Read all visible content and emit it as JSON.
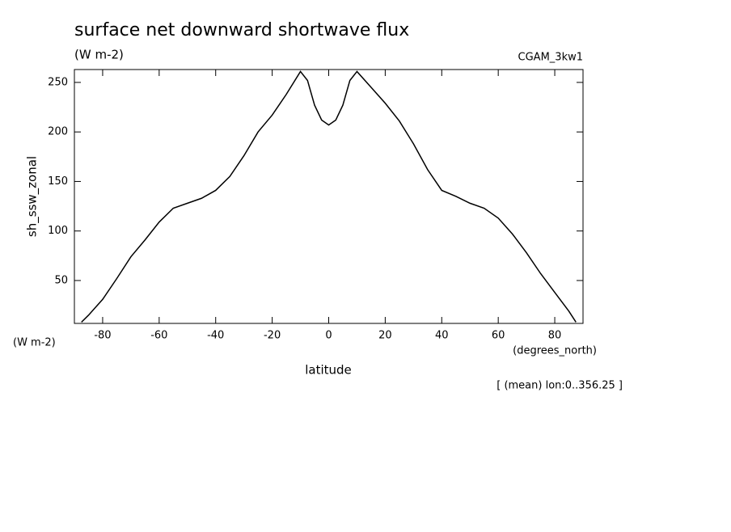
{
  "chart_data": {
    "type": "line",
    "title": "surface net downward shortwave flux",
    "subtitle": "(W m-2)",
    "dataset": "CGAM_3kw1",
    "ylabel": "sh_ssw_zonal",
    "yunits": "(W m-2)",
    "xunits": "(degrees_north)",
    "xlabel": "latitude",
    "note": "[ (mean) lon:0..356.25 ]",
    "x": [
      -87.5,
      -85,
      -80,
      -75,
      -70,
      -65,
      -60,
      -55,
      -50,
      -45,
      -40,
      -35,
      -30,
      -25,
      -20,
      -15,
      -10,
      -7.5,
      -5,
      -2.5,
      0,
      2.5,
      5,
      7.5,
      10,
      15,
      20,
      25,
      30,
      35,
      40,
      45,
      50,
      55,
      60,
      65,
      70,
      75,
      80,
      85,
      87.5
    ],
    "series": [
      {
        "name": "sh_ssw_zonal",
        "color": "#000000",
        "values": [
          8,
          15,
          31,
          52,
          74,
          91,
          109,
          123,
          128,
          133,
          141,
          155,
          176,
          200,
          217,
          238,
          261,
          252,
          227,
          212,
          207,
          212,
          227,
          252,
          261,
          245,
          229,
          211,
          188,
          162,
          141,
          135,
          128,
          123,
          113,
          97,
          78,
          57,
          38,
          19,
          8
        ]
      }
    ],
    "xlim": [
      -90,
      90
    ],
    "ylim": [
      6.7,
      263
    ],
    "xticks": [
      -80,
      -60,
      -40,
      -20,
      0,
      20,
      40,
      60,
      80
    ],
    "yticks": [
      50,
      100,
      150,
      200,
      250
    ],
    "grid": false
  }
}
